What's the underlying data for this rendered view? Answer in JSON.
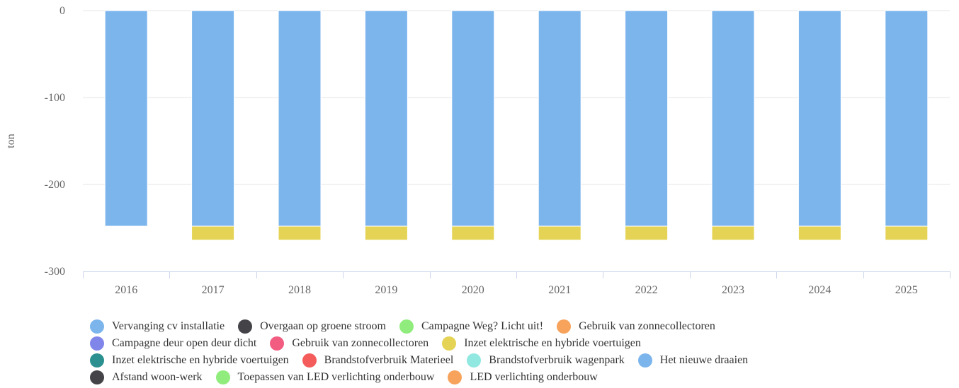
{
  "chart_data": {
    "type": "bar",
    "stacked": true,
    "ylabel": "ton",
    "ylim": [
      -300,
      0
    ],
    "yticks": [
      0,
      -100,
      -200,
      -300
    ],
    "grid": true,
    "legend_position": "bottom",
    "categories": [
      "2016",
      "2017",
      "2018",
      "2019",
      "2020",
      "2021",
      "2022",
      "2023",
      "2024",
      "2025"
    ],
    "series": [
      {
        "name": "Vervanging cv installatie",
        "color": "#7cb5ec",
        "values": [
          0,
          0,
          0,
          0,
          0,
          0,
          0,
          0,
          0,
          0
        ]
      },
      {
        "name": "Overgaan op groene stroom",
        "color": "#434348",
        "values": [
          0,
          0,
          0,
          0,
          0,
          0,
          0,
          0,
          0,
          0
        ]
      },
      {
        "name": "Campagne Weg? Licht uit!",
        "color": "#90ed7d",
        "values": [
          0,
          0,
          0,
          0,
          0,
          0,
          0,
          0,
          0,
          0
        ]
      },
      {
        "name": "Gebruik van zonnecollectoren",
        "color": "#f7a35c",
        "values": [
          0,
          0,
          0,
          0,
          0,
          0,
          0,
          0,
          0,
          0
        ]
      },
      {
        "name": "Campagne deur open deur dicht",
        "color": "#8085e9",
        "values": [
          0,
          0,
          0,
          0,
          0,
          0,
          0,
          0,
          0,
          0
        ]
      },
      {
        "name": "Gebruik van zonnecollectoren",
        "color": "#f15c80",
        "values": [
          0,
          0,
          0,
          0,
          0,
          0,
          0,
          0,
          0,
          0
        ]
      },
      {
        "name": "Inzet elektrische en hybride voertuigen",
        "color": "#e4d354",
        "values": [
          0,
          -16,
          -16,
          -16,
          -16,
          -16,
          -16,
          -16,
          -16,
          -16
        ]
      },
      {
        "name": "Inzet elektrische en hybride voertuigen",
        "color": "#2b908f",
        "values": [
          0,
          0,
          0,
          0,
          0,
          0,
          0,
          0,
          0,
          0
        ]
      },
      {
        "name": "Brandstofverbruik Materieel",
        "color": "#f45b5b",
        "values": [
          0,
          0,
          0,
          0,
          0,
          0,
          0,
          0,
          0,
          0
        ]
      },
      {
        "name": "Brandstofverbruik wagenpark",
        "color": "#91e8e1",
        "values": [
          0,
          0,
          0,
          0,
          0,
          0,
          0,
          0,
          0,
          0
        ]
      },
      {
        "name": "Het nieuwe draaien",
        "color": "#7cb5ec",
        "values": [
          -248,
          -248,
          -248,
          -248,
          -248,
          -248,
          -248,
          -248,
          -248,
          -248
        ]
      },
      {
        "name": "Afstand woon-werk",
        "color": "#434348",
        "values": [
          0,
          0,
          0,
          0,
          0,
          0,
          0,
          0,
          0,
          0
        ]
      },
      {
        "name": "Toepassen van LED verlichting onderbouw",
        "color": "#90ed7d",
        "values": [
          0,
          0,
          0,
          0,
          0,
          0,
          0,
          0,
          0,
          0
        ]
      },
      {
        "name": "LED verlichting onderbouw",
        "color": "#f7a35c",
        "values": [
          0,
          0,
          0,
          0,
          0,
          0,
          0,
          0,
          0,
          0
        ]
      }
    ],
    "stack_order": [
      10,
      6
    ],
    "legend_rows": [
      [
        0,
        1,
        2,
        3
      ],
      [
        4,
        5,
        6
      ],
      [
        7,
        8,
        9,
        10
      ],
      [
        11,
        12,
        13
      ]
    ]
  }
}
